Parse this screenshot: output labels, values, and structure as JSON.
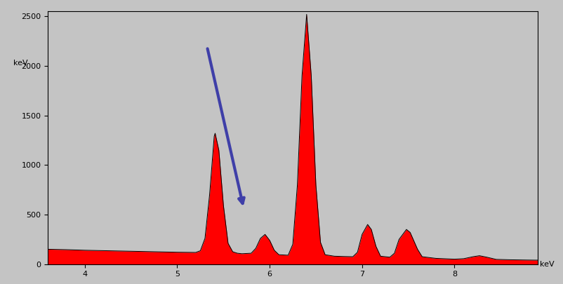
{
  "chart_data": {
    "type": "area",
    "x_label": "keV",
    "y_label": "keV",
    "x": [
      3.6,
      3.8,
      4.0,
      4.2,
      4.4,
      4.6,
      4.8,
      5.0,
      5.1,
      5.2,
      5.25,
      5.3,
      5.35,
      5.4,
      5.41,
      5.45,
      5.5,
      5.55,
      5.6,
      5.65,
      5.7,
      5.8,
      5.85,
      5.9,
      5.95,
      6.0,
      6.05,
      6.1,
      6.2,
      6.25,
      6.3,
      6.35,
      6.4,
      6.45,
      6.5,
      6.55,
      6.6,
      6.7,
      6.8,
      6.9,
      6.95,
      7.0,
      7.06,
      7.1,
      7.15,
      7.2,
      7.3,
      7.35,
      7.4,
      7.48,
      7.52,
      7.6,
      7.65,
      7.8,
      8.0,
      8.1,
      8.2,
      8.27,
      8.35,
      8.45,
      8.6,
      8.8,
      8.9
    ],
    "values": [
      150,
      146,
      140,
      136,
      132,
      128,
      124,
      120,
      119,
      118,
      135,
      260,
      700,
      1290,
      1320,
      1150,
      590,
      210,
      125,
      110,
      105,
      110,
      160,
      260,
      300,
      240,
      140,
      95,
      90,
      200,
      800,
      1900,
      2520,
      1900,
      800,
      220,
      95,
      80,
      77,
      75,
      120,
      300,
      400,
      350,
      180,
      80,
      70,
      110,
      250,
      350,
      320,
      150,
      75,
      58,
      50,
      55,
      75,
      85,
      70,
      48,
      44,
      41,
      40
    ],
    "color": "#ff0000",
    "xlim": [
      3.6,
      8.9
    ],
    "ylim": [
      0,
      2550
    ],
    "xticks": [
      4,
      5,
      6,
      7,
      8
    ],
    "yticks": [
      0,
      500,
      1000,
      1500,
      2000,
      2500
    ],
    "grid": false
  }
}
